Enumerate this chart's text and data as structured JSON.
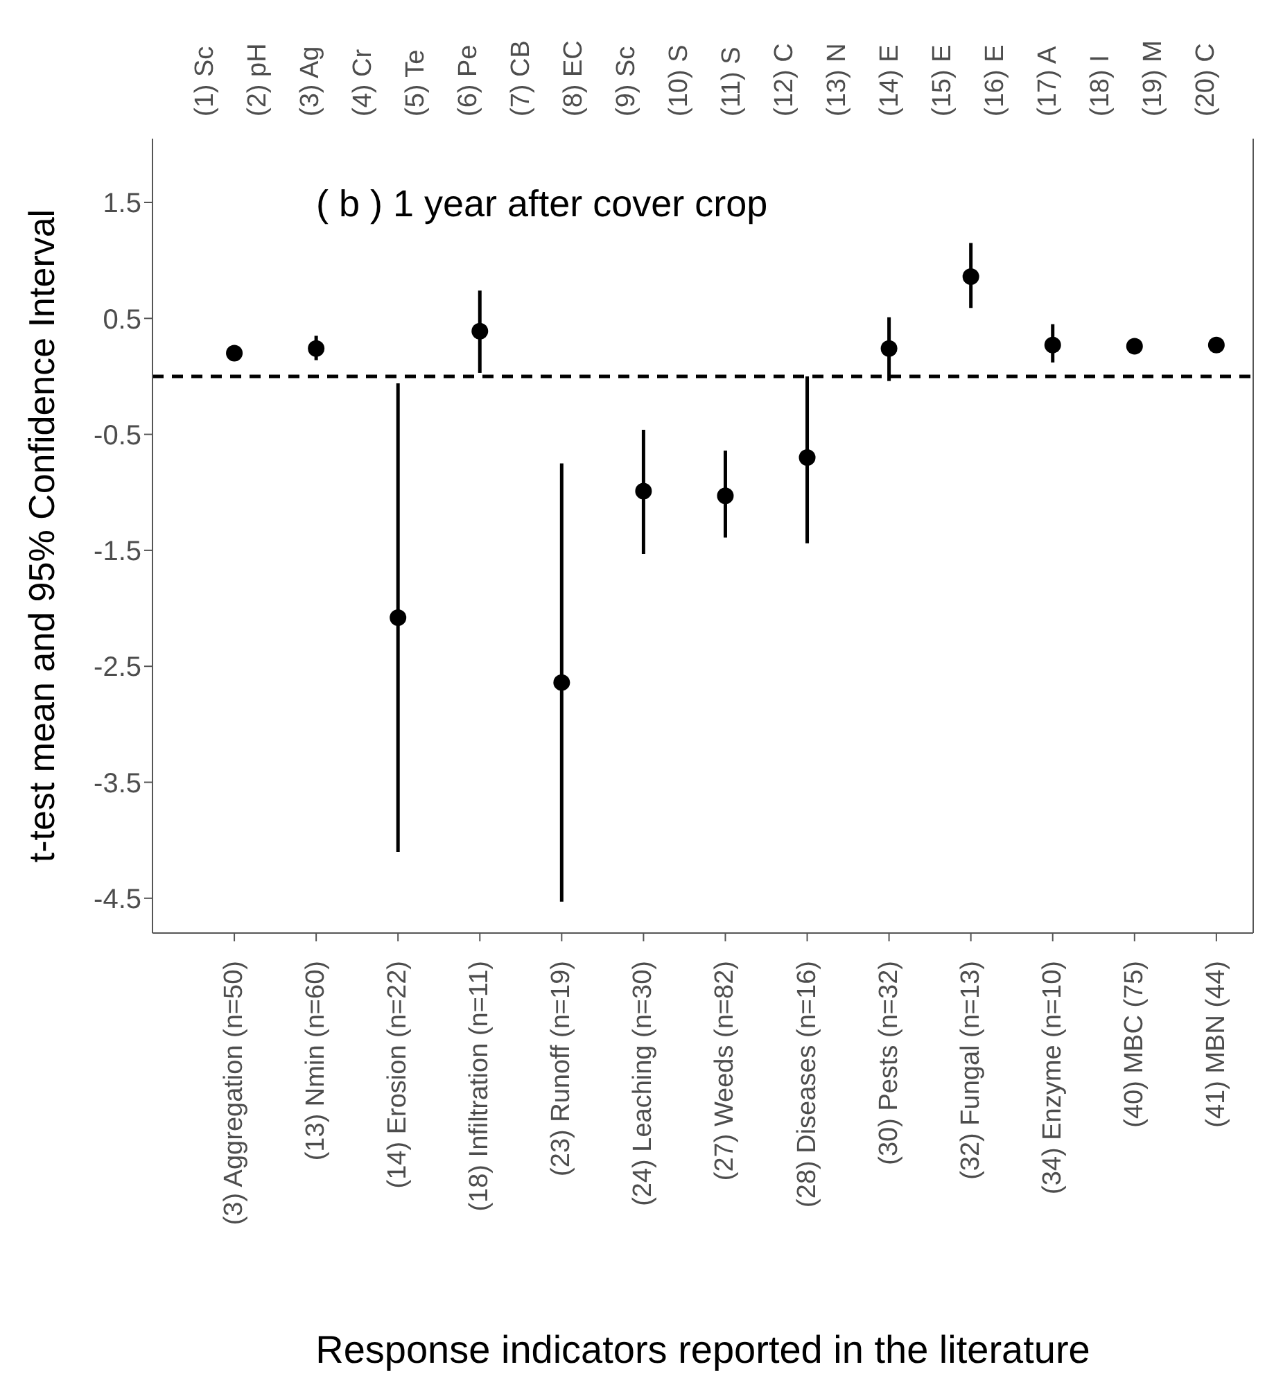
{
  "chart_data": {
    "type": "scatter",
    "title": "( b ) 1 year after cover crop",
    "xlabel": "Response indicators reported in the literature",
    "ylabel": "t-test mean and 95% Confidence Interval",
    "categories": [
      "(3) Aggregation (n=50)",
      "(13) Nmin (n=60)",
      "(14) Erosion (n=22)",
      "(18) Infiltration (n=11)",
      "(23) Runoff (n=19)",
      "(24) Leaching (n=30)",
      "(27) Weeds (n=82)",
      "(28) Diseases (n=16)",
      "(30) Pests (n=32)",
      "(32) Fungal (n=13)",
      "(34) Enzyme (n=10)",
      "(40) MBC (75)",
      "(41) MBN (44)"
    ],
    "series": [
      {
        "color": "#000000",
        "values": [
          0.2,
          0.24,
          -2.08,
          0.39,
          -2.64,
          -0.99,
          -1.03,
          -0.7,
          0.24,
          0.86,
          0.27,
          0.26,
          0.27
        ],
        "errors": [
          null,
          [
            0.14,
            0.35
          ],
          [
            -4.1,
            -0.06
          ],
          [
            0.03,
            0.74
          ],
          [
            -4.53,
            -0.75
          ],
          [
            -1.53,
            -0.46
          ],
          [
            -1.39,
            -0.64
          ],
          [
            -1.44,
            0.0
          ],
          [
            -0.04,
            0.51
          ],
          [
            0.59,
            1.15
          ],
          [
            0.12,
            0.45
          ],
          null,
          null
        ]
      }
    ],
    "marker": "circle",
    "ylim": [
      -4.8,
      2.05
    ],
    "yticks": [
      1.5,
      0.5,
      -0.5,
      -1.5,
      -2.5,
      -3.5,
      -4.5
    ],
    "ref_lines": [
      {
        "axis": "y",
        "value": 0,
        "color": "#000000",
        "line_style": "dashed"
      }
    ],
    "annotations": [
      "(1) Sc",
      "(2) pH",
      "(3) Ag",
      "(4) Cr",
      "(5) Te",
      "(6) Pe",
      "(7) CB",
      "(8) EC",
      "(9) Sc",
      "(10) S",
      "(11) S",
      "(12) C",
      "(13) N",
      "(14) E",
      "(15) E",
      "(16) E",
      "(17) A",
      "(18) I",
      "(19) M",
      "(20) C"
    ]
  }
}
